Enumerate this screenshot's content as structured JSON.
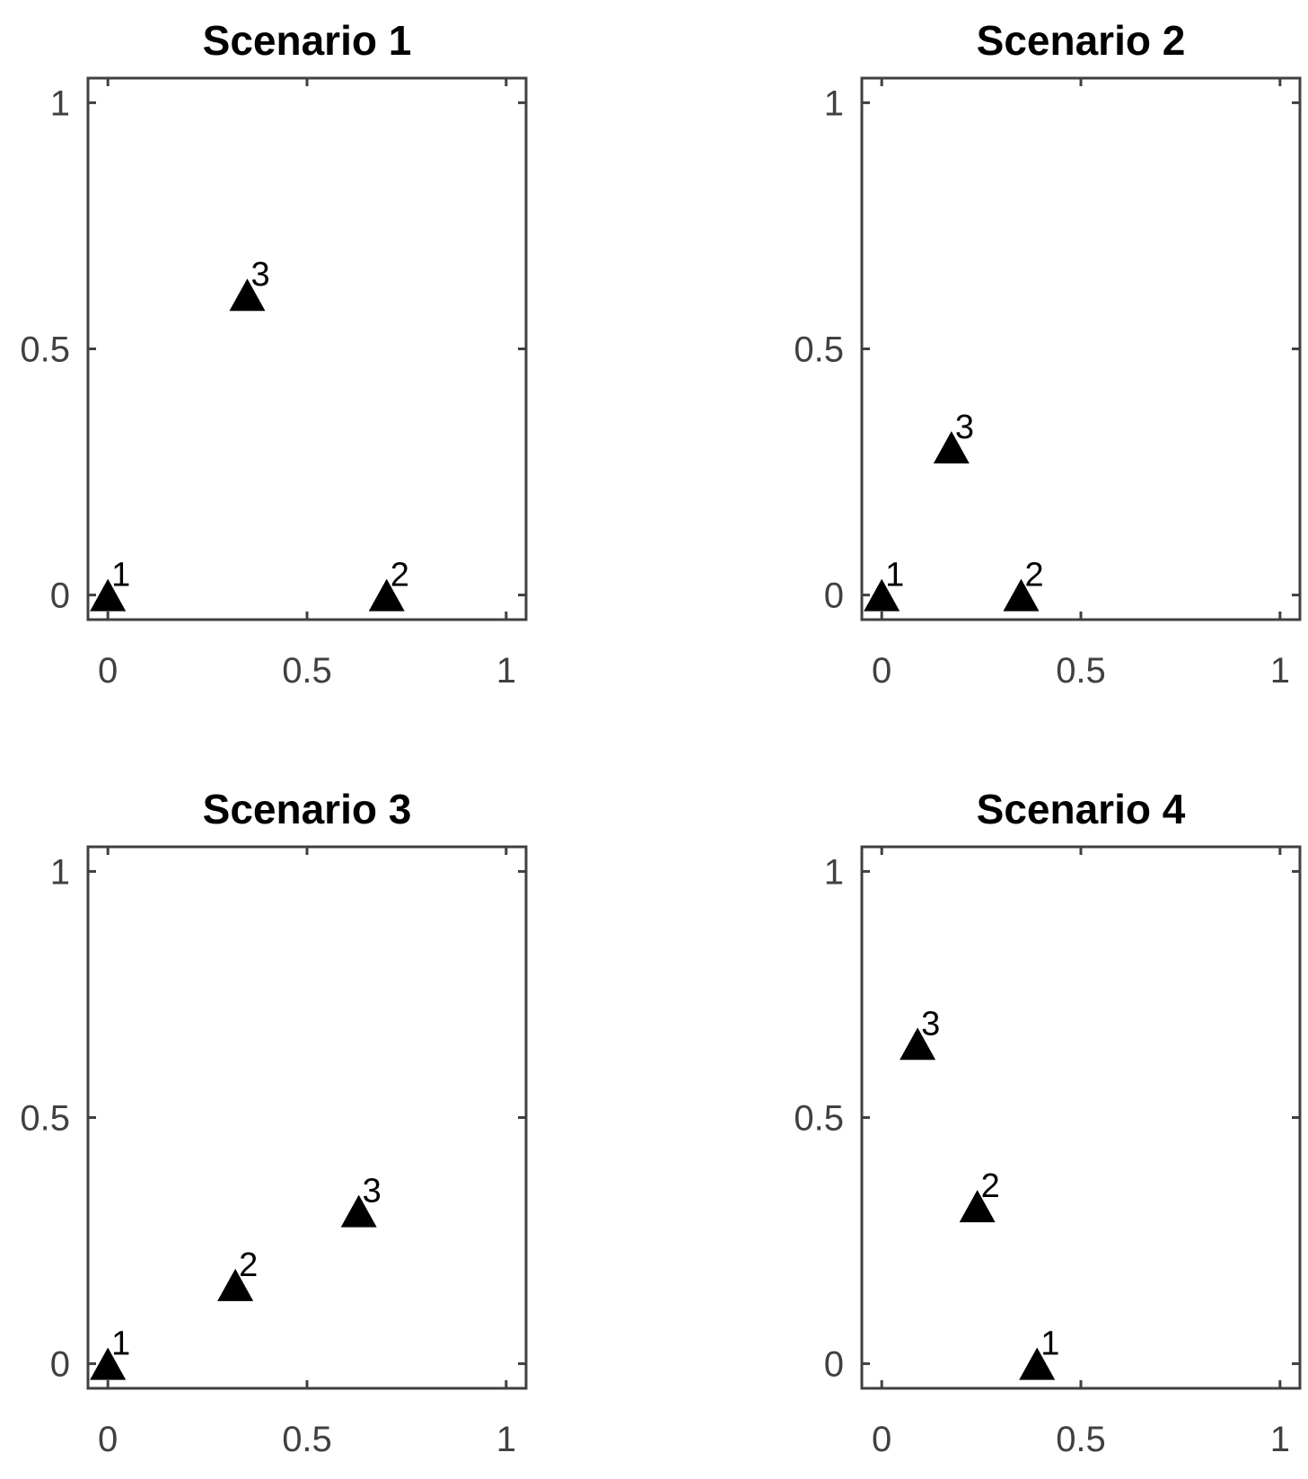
{
  "chart_data": [
    {
      "type": "scatter",
      "title": "Scenario 1",
      "xlim": [
        -0.05,
        1.05
      ],
      "ylim": [
        -0.05,
        1.05
      ],
      "xticks": [
        "0",
        "0.5",
        "1"
      ],
      "yticks": [
        "0",
        "0.5",
        "1"
      ],
      "marker": "filled-triangle",
      "points": [
        {
          "label": "1",
          "x": 0.0,
          "y": 0.0
        },
        {
          "label": "2",
          "x": 0.7,
          "y": 0.0
        },
        {
          "label": "3",
          "x": 0.35,
          "y": 0.61
        }
      ]
    },
    {
      "type": "scatter",
      "title": "Scenario 2",
      "xlim": [
        -0.05,
        1.05
      ],
      "ylim": [
        -0.05,
        1.05
      ],
      "xticks": [
        "0",
        "0.5",
        "1"
      ],
      "yticks": [
        "0",
        "0.5",
        "1"
      ],
      "marker": "filled-triangle",
      "points": [
        {
          "label": "1",
          "x": 0.0,
          "y": 0.0
        },
        {
          "label": "2",
          "x": 0.35,
          "y": 0.0
        },
        {
          "label": "3",
          "x": 0.175,
          "y": 0.3
        }
      ]
    },
    {
      "type": "scatter",
      "title": "Scenario 3",
      "xlim": [
        -0.05,
        1.05
      ],
      "ylim": [
        -0.05,
        1.05
      ],
      "xticks": [
        "0",
        "0.5",
        "1"
      ],
      "yticks": [
        "0",
        "0.5",
        "1"
      ],
      "marker": "filled-triangle",
      "points": [
        {
          "label": "1",
          "x": 0.0,
          "y": 0.0
        },
        {
          "label": "2",
          "x": 0.32,
          "y": 0.16
        },
        {
          "label": "3",
          "x": 0.63,
          "y": 0.31
        }
      ]
    },
    {
      "type": "scatter",
      "title": "Scenario 4",
      "xlim": [
        -0.05,
        1.05
      ],
      "ylim": [
        -0.05,
        1.05
      ],
      "xticks": [
        "0",
        "0.5",
        "1"
      ],
      "yticks": [
        "0",
        "0.5",
        "1"
      ],
      "marker": "filled-triangle",
      "points": [
        {
          "label": "1",
          "x": 0.39,
          "y": 0.0
        },
        {
          "label": "2",
          "x": 0.24,
          "y": 0.32
        },
        {
          "label": "3",
          "x": 0.09,
          "y": 0.65
        }
      ]
    }
  ]
}
